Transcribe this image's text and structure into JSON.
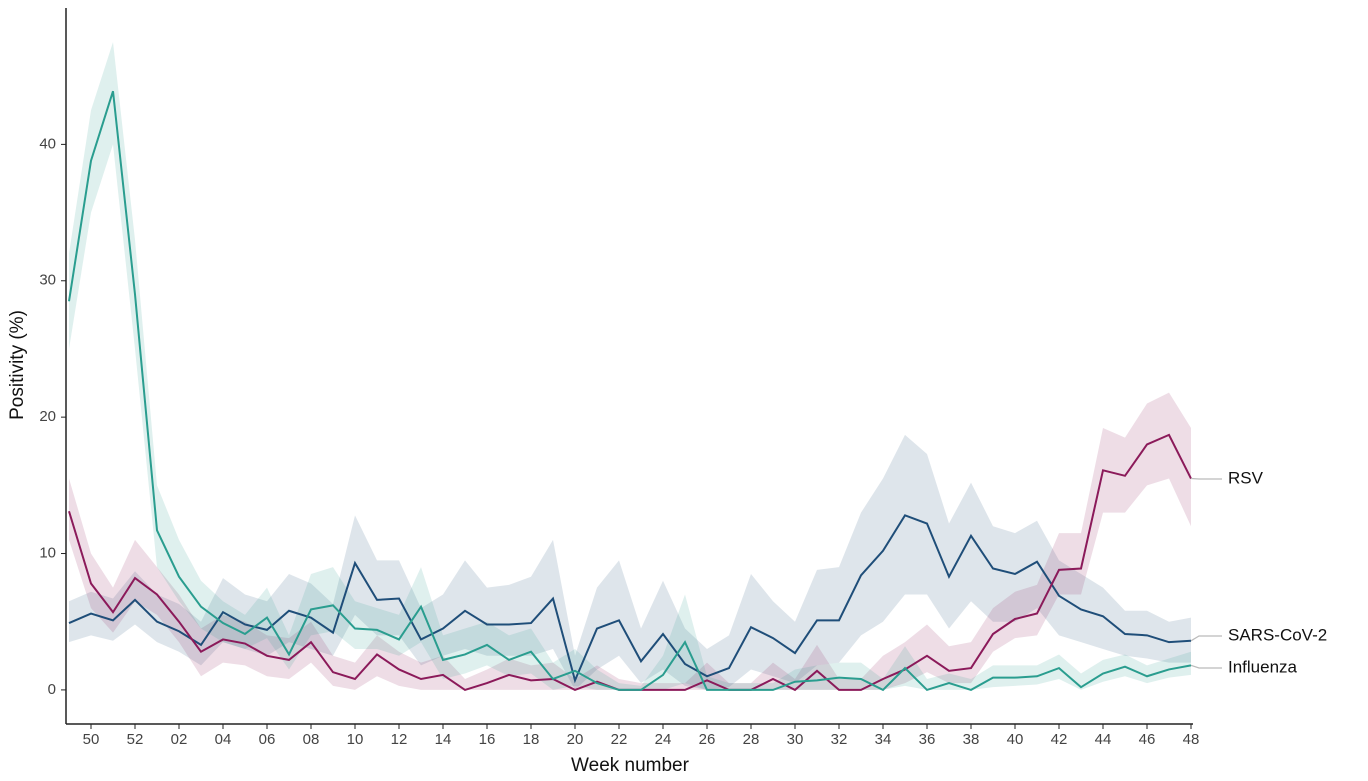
{
  "chart_data": {
    "type": "line",
    "x_label": "Week number",
    "y_label": "Positivity (%)",
    "categories": [
      null,
      "50",
      null,
      "52",
      null,
      "02",
      null,
      "04",
      null,
      "06",
      null,
      "08",
      null,
      "10",
      null,
      "12",
      null,
      "14",
      null,
      "16",
      null,
      "18",
      null,
      "20",
      null,
      "22",
      null,
      "24",
      null,
      "26",
      null,
      "28",
      null,
      "30",
      null,
      "32",
      null,
      "34",
      null,
      "36",
      null,
      "38",
      null,
      "40",
      null,
      "42",
      null,
      "44",
      null,
      "46",
      null,
      "48"
    ],
    "ylim": [
      -2.5,
      50
    ],
    "yticks": [
      0,
      10,
      20,
      30,
      40
    ],
    "series": [
      {
        "name": "SARS-CoV-2",
        "color": "#1f4e79",
        "values": [
          4.9,
          5.6,
          5.1,
          6.6,
          5.0,
          4.3,
          3.3,
          5.7,
          4.8,
          4.4,
          5.8,
          5.3,
          4.2,
          9.3,
          6.6,
          6.7,
          3.7,
          4.5,
          5.8,
          4.8,
          4.8,
          4.9,
          6.7,
          0.7,
          4.5,
          5.1,
          2.1,
          4.1,
          1.9,
          1.0,
          1.6,
          4.6,
          3.8,
          2.7,
          5.1,
          5.1,
          8.4,
          10.2,
          12.8,
          12.2,
          8.3,
          11.3,
          8.9,
          8.5,
          9.4,
          6.9,
          5.9,
          5.4,
          4.1,
          4.0,
          3.5,
          3.6
        ],
        "lower": [
          3.5,
          4,
          3.6,
          4.8,
          3.5,
          2.8,
          1.8,
          3.5,
          3,
          2.5,
          3.5,
          3,
          2.5,
          5.5,
          4,
          4,
          1.8,
          2.5,
          3,
          2.5,
          2.5,
          2.5,
          3,
          0,
          1.5,
          2.5,
          0.5,
          1.5,
          0.3,
          0,
          0.2,
          1.5,
          1,
          0.5,
          1.8,
          2,
          4,
          5,
          7,
          7,
          4.5,
          6.5,
          5,
          5,
          6,
          4,
          3.5,
          3,
          2.5,
          2.3,
          2,
          2
        ],
        "upper": [
          6.5,
          7.2,
          6.7,
          8.7,
          7,
          6.3,
          5,
          8.2,
          7,
          6.5,
          8.5,
          7.8,
          6.3,
          12.8,
          9.5,
          9.5,
          6,
          7,
          9.5,
          7.5,
          7.7,
          8.3,
          11,
          2.5,
          7.5,
          9.5,
          4.5,
          8,
          4.5,
          3,
          4,
          8.5,
          6.5,
          5,
          8.8,
          9,
          13,
          15.5,
          18.7,
          17.3,
          12.2,
          15.2,
          12,
          11.5,
          12.4,
          9.5,
          8.5,
          7.5,
          5.8,
          5.8,
          5,
          5.3
        ]
      },
      {
        "name": "RSV",
        "color": "#8b1a5a",
        "values": [
          13.1,
          7.8,
          5.7,
          8.2,
          7.0,
          5.0,
          2.8,
          3.7,
          3.4,
          2.5,
          2.2,
          3.5,
          1.3,
          0.8,
          2.6,
          1.5,
          0.8,
          1.1,
          0,
          0.5,
          1.1,
          0.7,
          0.8,
          0,
          0.6,
          0,
          0,
          0,
          0,
          0.7,
          0,
          0,
          0.8,
          0,
          1.4,
          0,
          0,
          0.8,
          1.5,
          2.5,
          1.4,
          1.6,
          4.1,
          5.2,
          5.6,
          8.8,
          8.9,
          16.1,
          15.7,
          18.0,
          18.7,
          15.5
        ],
        "lower": [
          11,
          6,
          4.2,
          6.5,
          5.5,
          3.5,
          1,
          2,
          1.8,
          1,
          0.8,
          2,
          0.3,
          0,
          1,
          0.3,
          0,
          0,
          0,
          0,
          0,
          0,
          0,
          0,
          0,
          0,
          0,
          0,
          0,
          0,
          0,
          0,
          0,
          0,
          0,
          0,
          0,
          0,
          0.5,
          1.3,
          0.5,
          0.5,
          2.8,
          3.8,
          4,
          7,
          7,
          13,
          13,
          15,
          15.5,
          12
        ],
        "upper": [
          15.5,
          10,
          7.5,
          11,
          9,
          7,
          4.5,
          5.5,
          5,
          4,
          3.8,
          5,
          2.5,
          2,
          4,
          2.8,
          2,
          2.5,
          0.8,
          1.5,
          2.3,
          1.8,
          2,
          0.8,
          1.8,
          0.8,
          0.5,
          0.5,
          0.5,
          2,
          0.5,
          0.5,
          2,
          0.8,
          3.3,
          0.8,
          0.8,
          2.5,
          3.5,
          4.8,
          3.2,
          3.5,
          6,
          7.2,
          7.7,
          11.5,
          11.5,
          19.2,
          18.5,
          21,
          21.8,
          19.2
        ]
      },
      {
        "name": "Influenza",
        "color": "#2a9d8f",
        "values": [
          28.5,
          38.8,
          43.9,
          29,
          11.7,
          8.3,
          6.1,
          4.9,
          4.1,
          5.3,
          2.6,
          5.9,
          6.2,
          4.5,
          4.4,
          3.7,
          6.1,
          2.2,
          2.6,
          3.3,
          2.2,
          2.8,
          0.8,
          1.4,
          0.5,
          0,
          0,
          1.1,
          3.5,
          0,
          0,
          0,
          0,
          0.6,
          0.7,
          0.9,
          0.8,
          0,
          1.6,
          0,
          0.5,
          0,
          0.9,
          0.9,
          1.0,
          1.6,
          0.2,
          1.2,
          1.7,
          1.0,
          1.5,
          1.8
        ],
        "lower": [
          25,
          35,
          40,
          25,
          9,
          6.5,
          4.5,
          3.5,
          3,
          3.8,
          1.5,
          4,
          4.3,
          3,
          3,
          2.5,
          3.5,
          0.8,
          1.2,
          1.8,
          1,
          1.2,
          0,
          0.3,
          0,
          0,
          0,
          0,
          0.5,
          0,
          0,
          0,
          0,
          0,
          0,
          0,
          0,
          0,
          0.3,
          0,
          0,
          0,
          0.2,
          0.3,
          0.4,
          0.8,
          0,
          0.6,
          1,
          0.5,
          0.9,
          1.1
        ],
        "upper": [
          32,
          42.5,
          47.5,
          33,
          15,
          11,
          8,
          6.5,
          5.5,
          7.5,
          4,
          8.5,
          9,
          6.5,
          6,
          5.5,
          9,
          4,
          4.5,
          5,
          4,
          4.5,
          2,
          3,
          1.5,
          0.5,
          0.3,
          2.5,
          7,
          1,
          0.5,
          0.5,
          0.5,
          1.5,
          1.8,
          2,
          2,
          0.8,
          3.2,
          0.8,
          1.2,
          0.8,
          1.8,
          1.8,
          1.8,
          2.6,
          1.2,
          2.2,
          2.6,
          1.8,
          2.3,
          2.8
        ]
      }
    ]
  }
}
